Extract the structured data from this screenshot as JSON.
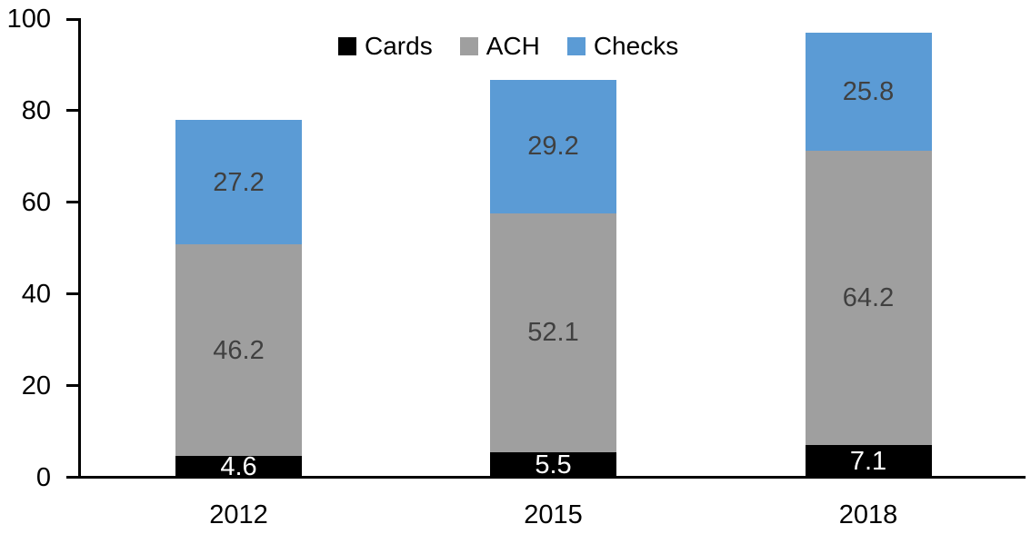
{
  "chart_data": {
    "type": "bar",
    "stacked": true,
    "title": "",
    "xlabel": "",
    "ylabel": "",
    "categories": [
      "2012",
      "2015",
      "2018"
    ],
    "series": [
      {
        "name": "Cards",
        "color": "#000000",
        "label_color": "#ffffff",
        "values": [
          4.6,
          5.5,
          7.1
        ]
      },
      {
        "name": "ACH",
        "color": "#9f9f9f",
        "label_color": "#404040",
        "values": [
          46.2,
          52.1,
          64.2
        ]
      },
      {
        "name": "Checks",
        "color": "#5b9bd5",
        "label_color": "#404040",
        "values": [
          27.2,
          29.2,
          25.8
        ]
      }
    ],
    "yticks": [
      0,
      20,
      40,
      60,
      80,
      100
    ],
    "ylim": [
      0,
      100
    ],
    "grid": false,
    "legend_position": "top",
    "axis_color": "#000000"
  }
}
